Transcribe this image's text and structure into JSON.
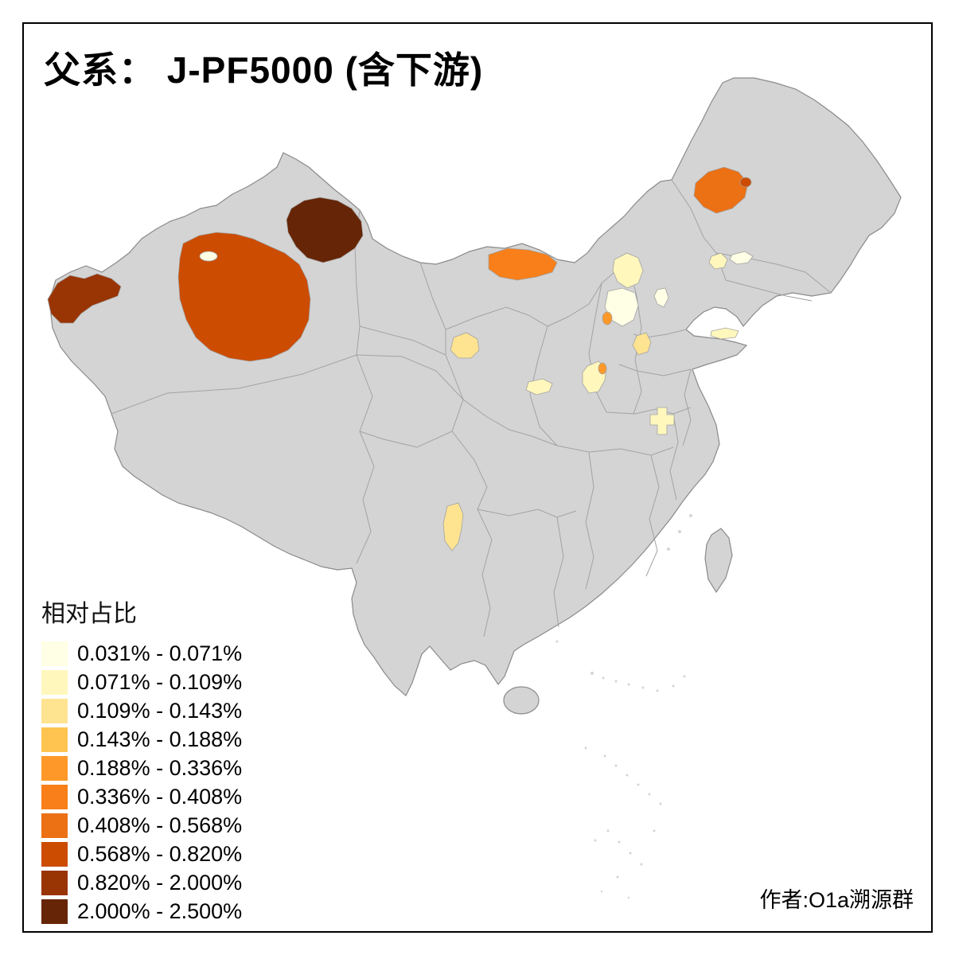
{
  "title": "父系： J-PF5000 (含下游)",
  "author": "作者:O1a溯源群",
  "colors": {
    "background": "#ffffff",
    "frame": "#000000",
    "text": "#000000"
  },
  "legend": {
    "title": "相对占比",
    "classes": [
      {
        "range": "0.031% - 0.071%",
        "color": "#FFFFE5"
      },
      {
        "range": "0.071% - 0.109%",
        "color": "#FFF7BC"
      },
      {
        "range": "0.109% - 0.143%",
        "color": "#FEE391"
      },
      {
        "range": "0.143% - 0.188%",
        "color": "#FEC44F"
      },
      {
        "range": "0.188% - 0.336%",
        "color": "#FE9929"
      },
      {
        "range": "0.336% - 0.408%",
        "color": "#F87F19"
      },
      {
        "range": "0.408% - 0.568%",
        "color": "#EC7014"
      },
      {
        "range": "0.568% - 0.820%",
        "color": "#CC4C02"
      },
      {
        "range": "0.820% - 2.000%",
        "color": "#993404"
      },
      {
        "range": "2.000% - 2.500%",
        "color": "#662506"
      }
    ]
  },
  "map": {
    "type": "choropleth",
    "subject": "China prefecture-level map",
    "land_color": "#d4d4d4",
    "boundary_color": "#a3a3a3",
    "outline_color": "#8a8a8a",
    "regions": [
      {
        "id": "north-xinjiang-area",
        "color_class": 10
      },
      {
        "id": "central-xinjiang-large-area",
        "color_class": 8
      },
      {
        "id": "central-xinjiang-enclave",
        "color_class": 1
      },
      {
        "id": "west-xinjiang-tip",
        "color_class": 9
      },
      {
        "id": "inner-mongolia-patch",
        "color_class": 6
      },
      {
        "id": "northeast-patch",
        "color_class": 7
      },
      {
        "id": "northeast-small-speck",
        "color_class": 8
      },
      {
        "id": "hebei-north-patch",
        "color_class": 2
      },
      {
        "id": "hebei-central-patch",
        "color_class": 1
      },
      {
        "id": "hebei-orange-speck",
        "color_class": 5
      },
      {
        "id": "beijing-area-patch",
        "color_class": 1
      },
      {
        "id": "liaoning-west-patch",
        "color_class": 2
      },
      {
        "id": "liaoning-north-patch",
        "color_class": 1
      },
      {
        "id": "gansu-patch",
        "color_class": 3
      },
      {
        "id": "shanxi-south-patch",
        "color_class": 2
      },
      {
        "id": "shanxi-orange-speck",
        "color_class": 5
      },
      {
        "id": "shaanxi-north-patch",
        "color_class": 3
      },
      {
        "id": "guanzhong-west-patch",
        "color_class": 2
      },
      {
        "id": "shandong-north-strip",
        "color_class": 2
      },
      {
        "id": "henan-central-patch",
        "color_class": 2
      },
      {
        "id": "yunnan-central-patch",
        "color_class": 3
      }
    ]
  }
}
